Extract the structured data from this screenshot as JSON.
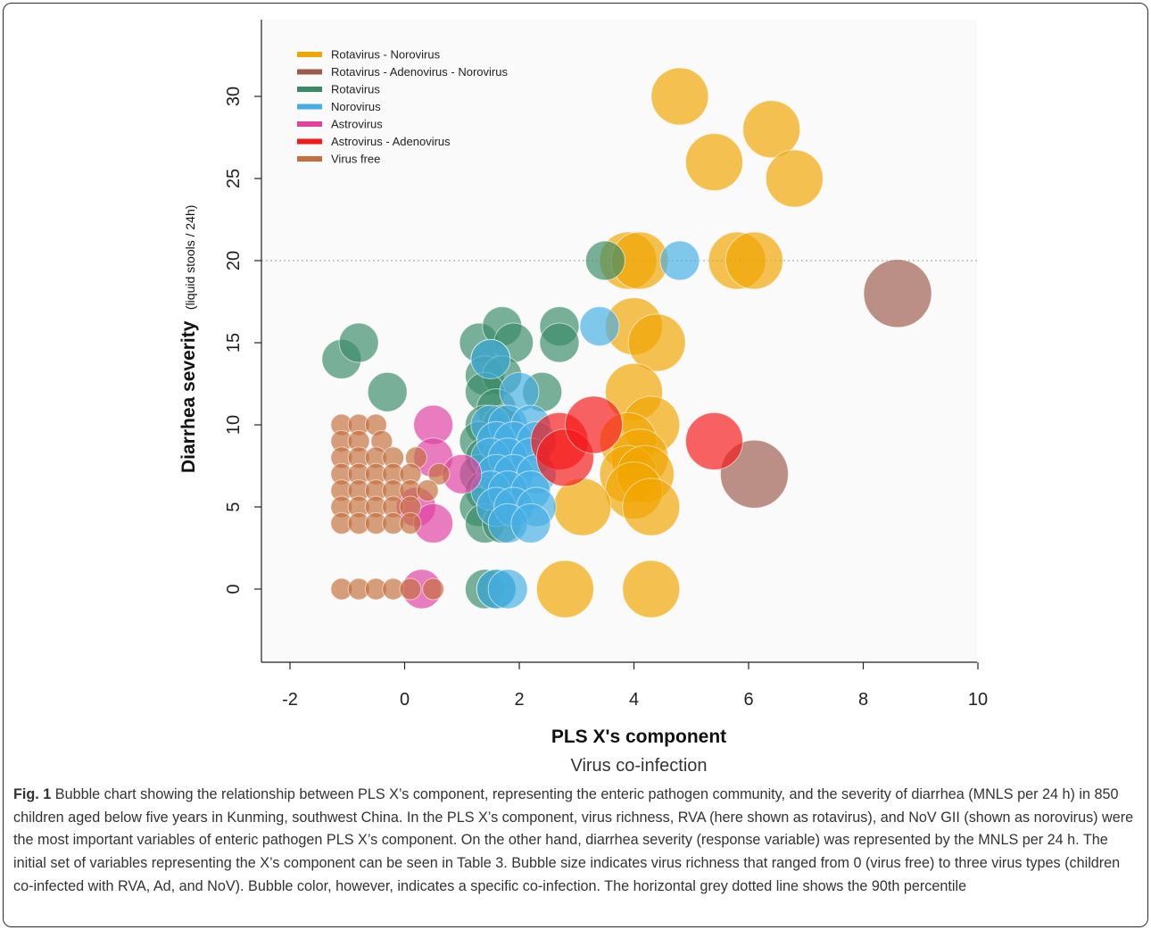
{
  "chart_data": {
    "type": "scatter",
    "subtype": "bubble",
    "xlabel": "PLS X's component",
    "x_sublabel": "Virus co-infection",
    "ylabel": "Diarrhea severity",
    "ylabel_unit": "(liquid stools / 24h)",
    "xlim": [
      -2.5,
      10
    ],
    "ylim": [
      -4.5,
      34
    ],
    "x_ticks": [
      "-2",
      "0",
      "2",
      "4",
      "6",
      "8",
      "10"
    ],
    "y_ticks": [
      "0",
      "5",
      "10",
      "15",
      "20",
      "25",
      "30"
    ],
    "reference_line": {
      "y": 20,
      "style": "dotted",
      "color": "#b0b0b0",
      "meaning": "90th percentile"
    },
    "legend_position": "top-left",
    "size_encoding": "virus richness (0 to 3)",
    "series": [
      {
        "name": "Rotavirus - Norovirus",
        "color": "#f0a500",
        "richness": 2,
        "points": [
          [
            4.8,
            30
          ],
          [
            6.4,
            28
          ],
          [
            5.4,
            26
          ],
          [
            6.8,
            25
          ],
          [
            3.9,
            20
          ],
          [
            4.1,
            20
          ],
          [
            5.8,
            20
          ],
          [
            6.1,
            20
          ],
          [
            4.0,
            16
          ],
          [
            4.4,
            15
          ],
          [
            4.0,
            12
          ],
          [
            4.3,
            10
          ],
          [
            3.9,
            9
          ],
          [
            4.1,
            8
          ],
          [
            3.9,
            7
          ],
          [
            4.2,
            7
          ],
          [
            4.0,
            6
          ],
          [
            4.3,
            5
          ],
          [
            3.1,
            5
          ],
          [
            2.8,
            0
          ],
          [
            4.3,
            0
          ]
        ]
      },
      {
        "name": "Rotavirus - Adenovirus - Norovirus",
        "color": "#9c5a4e",
        "richness": 3,
        "points": [
          [
            8.6,
            18
          ],
          [
            6.1,
            7
          ]
        ]
      },
      {
        "name": "Rotavirus",
        "color": "#3a8a68",
        "richness": 1,
        "points": [
          [
            -1.1,
            14
          ],
          [
            -0.8,
            15
          ],
          [
            -0.3,
            12
          ],
          [
            1.3,
            15
          ],
          [
            1.7,
            16
          ],
          [
            1.9,
            15
          ],
          [
            1.5,
            14
          ],
          [
            1.4,
            13
          ],
          [
            1.7,
            13
          ],
          [
            1.4,
            12
          ],
          [
            1.6,
            11
          ],
          [
            1.4,
            10
          ],
          [
            1.7,
            10
          ],
          [
            1.3,
            9
          ],
          [
            1.6,
            9
          ],
          [
            1.4,
            8
          ],
          [
            1.7,
            8
          ],
          [
            1.3,
            7
          ],
          [
            1.6,
            7
          ],
          [
            1.4,
            6
          ],
          [
            1.7,
            6
          ],
          [
            1.3,
            5
          ],
          [
            1.6,
            5
          ],
          [
            1.4,
            4
          ],
          [
            1.7,
            4
          ],
          [
            2.7,
            16
          ],
          [
            2.7,
            15
          ],
          [
            2.4,
            12
          ],
          [
            1.4,
            0
          ],
          [
            1.6,
            0
          ],
          [
            3.5,
            20
          ]
        ]
      },
      {
        "name": "Norovirus",
        "color": "#45aee4",
        "richness": 1,
        "points": [
          [
            1.5,
            14
          ],
          [
            2.0,
            12
          ],
          [
            1.5,
            10
          ],
          [
            1.8,
            10
          ],
          [
            2.2,
            10
          ],
          [
            1.6,
            9
          ],
          [
            1.9,
            9
          ],
          [
            2.3,
            9
          ],
          [
            1.5,
            8
          ],
          [
            1.8,
            8
          ],
          [
            2.2,
            8
          ],
          [
            1.6,
            7
          ],
          [
            1.9,
            7
          ],
          [
            2.3,
            7
          ],
          [
            1.5,
            6
          ],
          [
            1.8,
            6
          ],
          [
            2.2,
            6
          ],
          [
            1.6,
            5
          ],
          [
            1.9,
            5
          ],
          [
            2.3,
            5
          ],
          [
            1.8,
            4
          ],
          [
            2.2,
            4
          ],
          [
            1.6,
            0
          ],
          [
            1.8,
            0
          ],
          [
            3.4,
            16
          ],
          [
            4.8,
            20
          ]
        ]
      },
      {
        "name": "Astrovirus",
        "color": "#e040a0",
        "richness": 1,
        "points": [
          [
            0.5,
            10
          ],
          [
            0.5,
            8
          ],
          [
            1.0,
            7
          ],
          [
            0.2,
            5
          ],
          [
            0.5,
            4
          ],
          [
            0.3,
            0
          ]
        ]
      },
      {
        "name": "Astrovirus - Adenovirus",
        "color": "#f41818",
        "richness": 2,
        "points": [
          [
            2.7,
            9
          ],
          [
            2.8,
            8
          ],
          [
            3.3,
            10
          ],
          [
            5.4,
            9
          ]
        ]
      },
      {
        "name": "Virus free",
        "color": "#c4703e",
        "richness": 0,
        "points": [
          [
            -1.1,
            10
          ],
          [
            -0.8,
            10
          ],
          [
            -0.5,
            10
          ],
          [
            -1.1,
            9
          ],
          [
            -0.8,
            9
          ],
          [
            -0.4,
            9
          ],
          [
            -1.1,
            8
          ],
          [
            -0.8,
            8
          ],
          [
            -0.5,
            8
          ],
          [
            -0.2,
            8
          ],
          [
            0.2,
            8
          ],
          [
            -1.1,
            7
          ],
          [
            -0.8,
            7
          ],
          [
            -0.5,
            7
          ],
          [
            -0.2,
            7
          ],
          [
            0.1,
            7
          ],
          [
            0.6,
            7
          ],
          [
            -1.1,
            6
          ],
          [
            -0.8,
            6
          ],
          [
            -0.5,
            6
          ],
          [
            -0.2,
            6
          ],
          [
            0.1,
            6
          ],
          [
            0.4,
            6
          ],
          [
            -1.1,
            5
          ],
          [
            -0.8,
            5
          ],
          [
            -0.5,
            5
          ],
          [
            -0.2,
            5
          ],
          [
            0.1,
            5
          ],
          [
            -1.1,
            4
          ],
          [
            -0.8,
            4
          ],
          [
            -0.5,
            4
          ],
          [
            -0.2,
            4
          ],
          [
            0.1,
            4
          ],
          [
            -1.1,
            0
          ],
          [
            -0.8,
            0
          ],
          [
            -0.5,
            0
          ],
          [
            -0.2,
            0
          ],
          [
            0.1,
            0
          ],
          [
            0.5,
            0
          ]
        ]
      }
    ]
  },
  "caption": {
    "label": "Fig. 1",
    "text": "Bubble chart showing the relationship between PLS X’s component, representing the enteric pathogen community, and the severity of diarrhea (MNLS per 24 h) in 850 children aged below five years in Kunming, southwest China. In the PLS X’s component, virus richness, RVA (here shown as rotavirus), and NoV GII (shown as norovirus) were the most important variables of enteric pathogen PLS X’s component. On the other hand, diarrhea severity (response variable) was represented by the MNLS per 24 h. The initial set of variables representing the X’s component can be seen in Table 3. Bubble size indicates virus richness that ranged from 0 (virus free) to three virus types (children co-infected with RVA, Ad, and NoV). Bubble color, however, indicates a specific co-infection. The horizontal grey dotted line shows the 90th percentile"
  }
}
